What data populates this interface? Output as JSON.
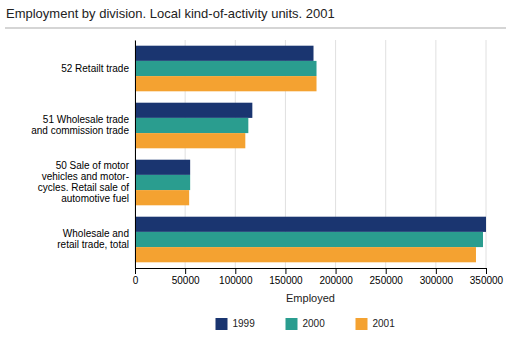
{
  "chart_data": {
    "type": "bar",
    "orientation": "horizontal",
    "title": "Employment by division. Local kind-of-activity units. 2001",
    "categories": [
      "Wholesale and\nretail trade, total",
      "50 Sale of motor\nvehicles and motor-\ncycles. Retail sale of\nautomotive fuel",
      "51 Wholesale trade\nand commission trade",
      "52 Retailt trade"
    ],
    "series": [
      {
        "name": "1999",
        "color": "#1a3570",
        "values": [
          350000,
          55000,
          117000,
          178000
        ]
      },
      {
        "name": "2000",
        "color": "#2a9d8f",
        "values": [
          347000,
          55000,
          113000,
          181000
        ]
      },
      {
        "name": "2001",
        "color": "#f4a231",
        "values": [
          340000,
          54000,
          110000,
          181000
        ]
      }
    ],
    "xlabel": "Employed",
    "xlim": [
      0,
      350000
    ],
    "xticks": [
      0,
      50000,
      100000,
      150000,
      200000,
      250000,
      300000,
      350000
    ],
    "grid": true,
    "legend": "bottom"
  }
}
